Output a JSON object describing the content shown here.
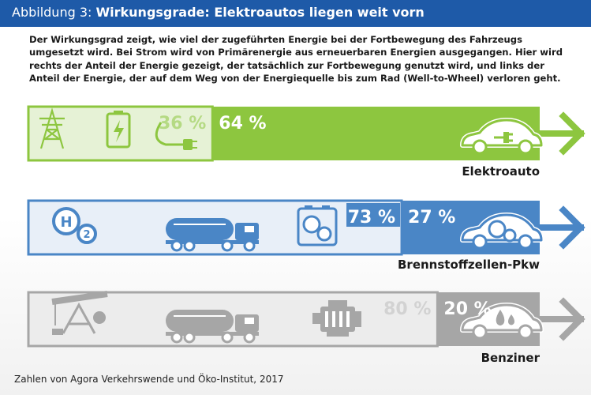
{
  "header": {
    "prefix": "Abbildung 3:",
    "title": "Wirkungsgrade: Elektroautos liegen weit vorn"
  },
  "intro": "Der Wirkungsgrad zeigt, wie viel der zugeführten Energie bei der Fortbewegung des Fahrzeugs umgesetzt wird. Bei Strom wird von Primärenergie aus erneuerbaren Energien ausgegangen. Hier wird rechts der Anteil der Energie gezeigt, der tatsächlich zur Fortbewegung genutzt wird, und links der Anteil der Energie, der auf dem Weg von der Energiequelle bis zum Rad (Well-to-Wheel) verloren geht.",
  "source": "Zahlen von Agora Verkehrswende und Öko-Institut, 2017",
  "colors": {
    "header": "#1e5aa8",
    "green": "#8dc63f",
    "green_light": "#e6f2d6",
    "blue": "#4a86c6",
    "blue_light": "#e8eff8",
    "gray": "#a6a6a6",
    "gray_light": "#ececec"
  },
  "icons": {
    "electric": [
      "power-pylon-icon",
      "battery-charging-icon",
      "plug-cable-icon",
      "electric-car-icon"
    ],
    "fuelcell": [
      "hydrogen-molecule-icon",
      "tanker-truck-icon",
      "fuel-cell-icon",
      "hydrogen-car-icon"
    ],
    "petrol": [
      "oil-pump-icon",
      "tanker-truck-icon",
      "engine-icon",
      "petrol-car-icon"
    ]
  },
  "chart_data": {
    "type": "bar",
    "stacked": true,
    "orientation": "horizontal",
    "categories": [
      "Elektroauto",
      "Brennstoffzellen-Pkw",
      "Benziner"
    ],
    "series": [
      {
        "values": [
          36,
          73,
          80
        ]
      },
      {
        "values": [
          64,
          27,
          20
        ]
      }
    ],
    "labels_lost": [
      "36 %",
      "73 %",
      "80 %"
    ],
    "labels_used": [
      "64 %",
      "27 %",
      "20 %"
    ],
    "xlim": [
      0,
      100
    ]
  }
}
